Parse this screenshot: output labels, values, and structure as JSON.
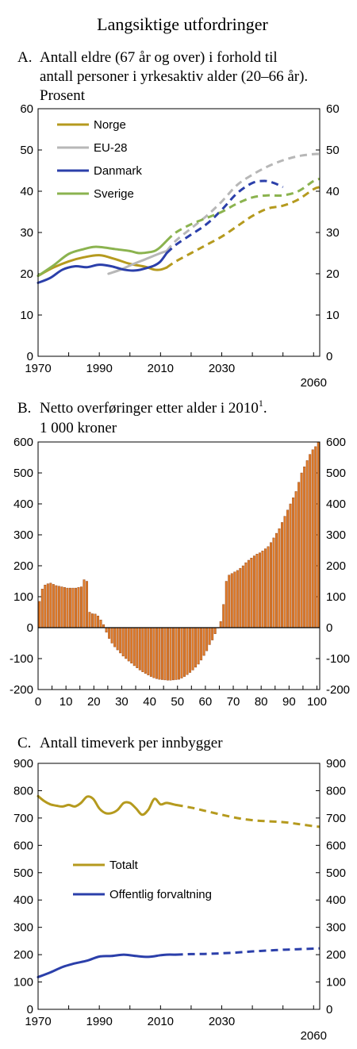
{
  "title": "Langsiktige utfordringer",
  "chart_data": [
    {
      "panel": "A.",
      "title_lines": [
        "Antall eldre (67 år og over) i forhold til",
        "antall personer i yrkesaktiv alder (20–66 år).",
        "Prosent"
      ],
      "type": "line",
      "xlim": [
        1970,
        2062
      ],
      "ylim": [
        0,
        60
      ],
      "x_ticks": [
        "1970",
        "1990",
        "2010",
        "2030",
        "2060"
      ],
      "x_tick_values": [
        1970,
        1990,
        2010,
        2030,
        2060
      ],
      "y_ticks": [
        0,
        10,
        20,
        30,
        40,
        50,
        60
      ],
      "legend_placement": "top-left",
      "grid": false,
      "dashed_after": "projection (dashed)",
      "series": [
        {
          "name": "Norge",
          "color": "#b59a1e",
          "solid": [
            [
              1970,
              19.5
            ],
            [
              1975,
              21.5
            ],
            [
              1980,
              23
            ],
            [
              1985,
              24
            ],
            [
              1990,
              24.5
            ],
            [
              1995,
              23.6
            ],
            [
              2000,
              22.4
            ],
            [
              2005,
              21.7
            ],
            [
              2008,
              21
            ],
            [
              2010,
              21
            ],
            [
              2012,
              21.5
            ]
          ],
          "dashed": [
            [
              2012,
              21.5
            ],
            [
              2015,
              23
            ],
            [
              2020,
              25
            ],
            [
              2025,
              27
            ],
            [
              2030,
              29
            ],
            [
              2035,
              31.5
            ],
            [
              2040,
              34
            ],
            [
              2045,
              35.8
            ],
            [
              2050,
              36.5
            ],
            [
              2055,
              38
            ],
            [
              2060,
              40.5
            ],
            [
              2062,
              41
            ]
          ]
        },
        {
          "name": "EU-28",
          "color": "#b7b7b7",
          "solid": [
            [
              1993,
              20
            ],
            [
              1997,
              21
            ],
            [
              2000,
              22
            ],
            [
              2005,
              23.5
            ],
            [
              2010,
              25
            ],
            [
              2012,
              25.5
            ]
          ],
          "dashed": [
            [
              2012,
              25.5
            ],
            [
              2015,
              28
            ],
            [
              2020,
              31
            ],
            [
              2025,
              34
            ],
            [
              2030,
              37.5
            ],
            [
              2035,
              41.5
            ],
            [
              2040,
              44
            ],
            [
              2045,
              46
            ],
            [
              2050,
              47.5
            ],
            [
              2055,
              48.5
            ],
            [
              2060,
              49
            ],
            [
              2062,
              49
            ]
          ]
        },
        {
          "name": "Danmark",
          "color": "#2b3faa",
          "solid": [
            [
              1970,
              17.8
            ],
            [
              1974,
              19
            ],
            [
              1978,
              21
            ],
            [
              1982,
              21.8
            ],
            [
              1986,
              21.6
            ],
            [
              1990,
              22.2
            ],
            [
              1994,
              21.8
            ],
            [
              1998,
              21
            ],
            [
              2002,
              20.8
            ],
            [
              2006,
              21.5
            ],
            [
              2008,
              22
            ],
            [
              2010,
              23
            ],
            [
              2012,
              25
            ]
          ],
          "dashed": [
            [
              2012,
              25
            ],
            [
              2015,
              27
            ],
            [
              2020,
              29.5
            ],
            [
              2025,
              32
            ],
            [
              2030,
              35.5
            ],
            [
              2035,
              39.5
            ],
            [
              2040,
              42
            ],
            [
              2044,
              42.5
            ],
            [
              2047,
              42
            ],
            [
              2050,
              41
            ]
          ]
        },
        {
          "name": "Sverige",
          "color": "#8bb34f",
          "solid": [
            [
              1970,
              19.5
            ],
            [
              1975,
              22
            ],
            [
              1980,
              24.8
            ],
            [
              1985,
              26
            ],
            [
              1988,
              26.5
            ],
            [
              1990,
              26.5
            ],
            [
              1995,
              26
            ],
            [
              2000,
              25.5
            ],
            [
              2003,
              25
            ],
            [
              2006,
              25.2
            ],
            [
              2008,
              25.5
            ],
            [
              2010,
              26.5
            ],
            [
              2012,
              28
            ]
          ],
          "dashed": [
            [
              2012,
              28
            ],
            [
              2015,
              30
            ],
            [
              2020,
              32
            ],
            [
              2025,
              33.5
            ],
            [
              2030,
              35
            ],
            [
              2035,
              37
            ],
            [
              2040,
              38.5
            ],
            [
              2045,
              39
            ],
            [
              2050,
              39
            ],
            [
              2055,
              40
            ],
            [
              2060,
              42.5
            ],
            [
              2062,
              43
            ]
          ]
        }
      ]
    },
    {
      "panel": "B.",
      "title_lines": [
        "Netto overføringer etter alder i 2010",
        "1 000 kroner"
      ],
      "title_superscript": "1",
      "title_tail": ".",
      "type": "bar",
      "bar_color": "#e07b28",
      "bar_outline": "#8a3c10",
      "xlim": [
        0,
        101
      ],
      "ylim": [
        -200,
        600
      ],
      "x_ticks": [
        0,
        10,
        20,
        30,
        40,
        50,
        60,
        70,
        80,
        90,
        100
      ],
      "y_ticks": [
        -200,
        -100,
        0,
        100,
        200,
        300,
        400,
        500,
        600
      ],
      "grid": false,
      "ages": [
        0,
        1,
        2,
        3,
        4,
        5,
        6,
        7,
        8,
        9,
        10,
        11,
        12,
        13,
        14,
        15,
        16,
        17,
        18,
        19,
        20,
        21,
        22,
        23,
        24,
        25,
        26,
        27,
        28,
        29,
        30,
        31,
        32,
        33,
        34,
        35,
        36,
        37,
        38,
        39,
        40,
        41,
        42,
        43,
        44,
        45,
        46,
        47,
        48,
        49,
        50,
        51,
        52,
        53,
        54,
        55,
        56,
        57,
        58,
        59,
        60,
        61,
        62,
        63,
        64,
        65,
        66,
        67,
        68,
        69,
        70,
        71,
        72,
        73,
        74,
        75,
        76,
        77,
        78,
        79,
        80,
        81,
        82,
        83,
        84,
        85,
        86,
        87,
        88,
        89,
        90,
        91,
        92,
        93,
        94,
        95,
        96,
        97,
        98,
        99,
        100
      ],
      "values": [
        85,
        125,
        138,
        142,
        144,
        140,
        136,
        134,
        132,
        130,
        128,
        128,
        128,
        128,
        130,
        132,
        155,
        150,
        50,
        45,
        44,
        38,
        25,
        10,
        -15,
        -35,
        -50,
        -62,
        -72,
        -82,
        -92,
        -100,
        -108,
        -115,
        -123,
        -130,
        -137,
        -143,
        -148,
        -153,
        -158,
        -162,
        -165,
        -167,
        -168,
        -169,
        -170,
        -170,
        -169,
        -168,
        -167,
        -163,
        -158,
        -152,
        -145,
        -137,
        -128,
        -118,
        -105,
        -90,
        -75,
        -55,
        -40,
        -20,
        0,
        20,
        75,
        150,
        170,
        175,
        180,
        185,
        192,
        200,
        210,
        218,
        225,
        232,
        238,
        242,
        248,
        255,
        262,
        275,
        290,
        305,
        320,
        340,
        360,
        380,
        400,
        420,
        440,
        470,
        500,
        520,
        540,
        560,
        575,
        585,
        600
      ]
    },
    {
      "panel": "C.",
      "title_lines": [
        "Antall timeverk per innbygger"
      ],
      "type": "line",
      "xlim": [
        1970,
        2062
      ],
      "ylim": [
        0,
        900
      ],
      "x_ticks": [
        "1970",
        "1990",
        "2010",
        "2030",
        "2060"
      ],
      "x_tick_values": [
        1970,
        1990,
        2010,
        2030,
        2060
      ],
      "y_ticks": [
        0,
        100,
        200,
        300,
        400,
        500,
        600,
        700,
        800,
        900
      ],
      "legend_placement": "center-left",
      "grid": false,
      "series": [
        {
          "name": "Totalt",
          "color": "#b59a1e",
          "solid": [
            [
              1970,
              780
            ],
            [
              1972,
              762
            ],
            [
              1974,
              750
            ],
            [
              1976,
              745
            ],
            [
              1978,
              742
            ],
            [
              1980,
              748
            ],
            [
              1982,
              742
            ],
            [
              1984,
              755
            ],
            [
              1986,
              778
            ],
            [
              1988,
              770
            ],
            [
              1990,
              735
            ],
            [
              1992,
              718
            ],
            [
              1994,
              718
            ],
            [
              1996,
              730
            ],
            [
              1998,
              755
            ],
            [
              2000,
              755
            ],
            [
              2002,
              735
            ],
            [
              2004,
              712
            ],
            [
              2006,
              730
            ],
            [
              2008,
              770
            ],
            [
              2010,
              750
            ],
            [
              2012,
              755
            ],
            [
              2015,
              748
            ]
          ],
          "dashed": [
            [
              2015,
              748
            ],
            [
              2020,
              738
            ],
            [
              2025,
              725
            ],
            [
              2030,
              712
            ],
            [
              2035,
              700
            ],
            [
              2040,
              692
            ],
            [
              2045,
              688
            ],
            [
              2050,
              685
            ],
            [
              2055,
              678
            ],
            [
              2060,
              670
            ],
            [
              2062,
              668
            ]
          ]
        },
        {
          "name": "Offentlig forvaltning",
          "color": "#2b3faa",
          "solid": [
            [
              1970,
              118
            ],
            [
              1974,
              135
            ],
            [
              1978,
              155
            ],
            [
              1982,
              168
            ],
            [
              1986,
              178
            ],
            [
              1990,
              193
            ],
            [
              1994,
              195
            ],
            [
              1998,
              200
            ],
            [
              2002,
              195
            ],
            [
              2006,
              192
            ],
            [
              2010,
              198
            ],
            [
              2012,
              200
            ],
            [
              2015,
              200
            ]
          ],
          "dashed": [
            [
              2015,
              200
            ],
            [
              2020,
              202
            ],
            [
              2025,
              203
            ],
            [
              2030,
              205
            ],
            [
              2035,
              208
            ],
            [
              2040,
              212
            ],
            [
              2045,
              215
            ],
            [
              2050,
              218
            ],
            [
              2055,
              220
            ],
            [
              2060,
              222
            ],
            [
              2062,
              223
            ]
          ]
        }
      ]
    }
  ]
}
